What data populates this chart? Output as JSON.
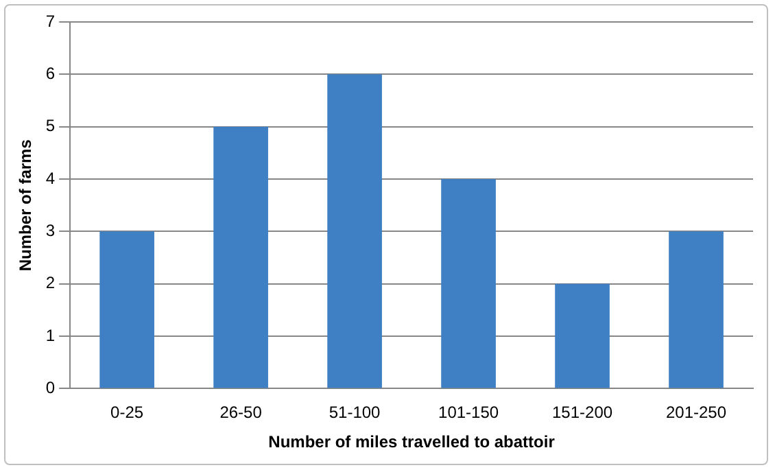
{
  "chart_data": {
    "type": "bar",
    "xlabel": "Number of miles travelled to abattoir",
    "ylabel": "Number of farms",
    "categories": [
      "0-25",
      "26-50",
      "51-100",
      "101-150",
      "151-200",
      "201-250"
    ],
    "values": [
      3,
      5,
      6,
      4,
      2,
      3
    ],
    "color": "#3f7fc4",
    "ylim": [
      0,
      7
    ],
    "yticks": [
      0,
      1,
      2,
      3,
      4,
      5,
      6,
      7
    ],
    "grid": "y",
    "legend": false
  }
}
